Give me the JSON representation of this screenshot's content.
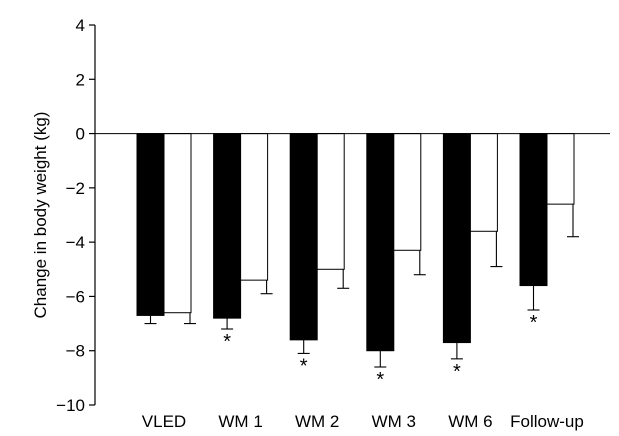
{
  "chart_data": {
    "type": "bar",
    "title": "",
    "xlabel": "",
    "ylabel": "Change in body weight (kg)",
    "ylim": [
      -10,
      4
    ],
    "yticks": [
      "4",
      "2",
      "0",
      "−2",
      "−4",
      "−6",
      "−8",
      "−10"
    ],
    "categories": [
      "VLED",
      "WM 1",
      "WM 2",
      "WM 3",
      "WM 6",
      "Follow-up"
    ],
    "series": [
      {
        "fill": "#000000",
        "values": [
          -6.7,
          -6.8,
          -7.6,
          -8.0,
          -7.7,
          -5.6
        ],
        "errors": [
          0.3,
          0.4,
          0.5,
          0.6,
          0.6,
          0.9
        ]
      },
      {
        "fill": "#ffffff",
        "values": [
          -6.6,
          -5.4,
          -5.0,
          -4.3,
          -3.6,
          -2.6
        ],
        "errors": [
          0.4,
          0.5,
          0.7,
          0.9,
          1.3,
          1.2
        ]
      }
    ],
    "significance_marker": "*",
    "significant_categories": [
      "WM 1",
      "WM 2",
      "WM 3",
      "WM 6",
      "Follow-up"
    ],
    "grid": false,
    "legend": "none"
  }
}
